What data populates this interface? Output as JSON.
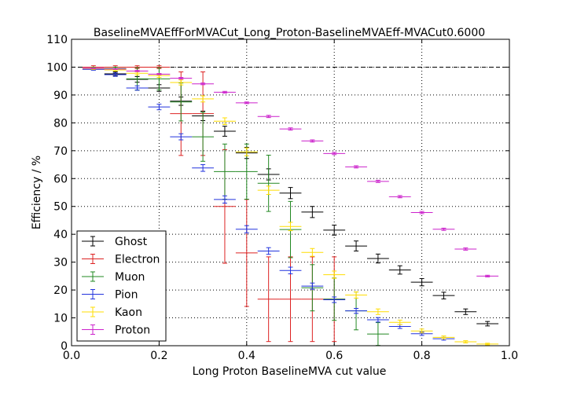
{
  "chart_data": {
    "type": "scatter",
    "title": "BaselineMVAEffForMVACut_Long_Proton-BaselineMVAEff-MVACut0.6000",
    "xlabel": "Long Proton BaselineMVA cut value",
    "ylabel": "Efficiency / %",
    "xlim": [
      0,
      1
    ],
    "ylim": [
      0,
      110
    ],
    "xticks": [
      "0.0",
      "0.2",
      "0.4",
      "0.6",
      "0.8",
      "1.0"
    ],
    "yticks": [
      "0",
      "10",
      "20",
      "30",
      "40",
      "50",
      "60",
      "70",
      "80",
      "90",
      "100",
      "110"
    ],
    "grid": true,
    "reference_line": 100,
    "legend_position": "lower-left",
    "series": [
      {
        "name": "Ghost",
        "color": "#000000",
        "points": [
          {
            "x": 0.05,
            "y": 99.3,
            "yerr": 0.3
          },
          {
            "x": 0.1,
            "y": 97.6,
            "yerr": 0.7
          },
          {
            "x": 0.15,
            "y": 95.6,
            "yerr": 1.0
          },
          {
            "x": 0.2,
            "y": 92.5,
            "yerr": 1.2
          },
          {
            "x": 0.25,
            "y": 87.8,
            "yerr": 1.5
          },
          {
            "x": 0.3,
            "y": 82.5,
            "yerr": 1.7
          },
          {
            "x": 0.35,
            "y": 77.0,
            "yerr": 1.8
          },
          {
            "x": 0.4,
            "y": 69.2,
            "yerr": 2.0
          },
          {
            "x": 0.45,
            "y": 61.5,
            "yerr": 2.0
          },
          {
            "x": 0.5,
            "y": 54.8,
            "yerr": 2.0
          },
          {
            "x": 0.55,
            "y": 48.0,
            "yerr": 2.0
          },
          {
            "x": 0.6,
            "y": 41.5,
            "yerr": 1.8
          },
          {
            "x": 0.65,
            "y": 35.8,
            "yerr": 1.8
          },
          {
            "x": 0.7,
            "y": 31.3,
            "yerr": 1.6
          },
          {
            "x": 0.75,
            "y": 27.2,
            "yerr": 1.5
          },
          {
            "x": 0.8,
            "y": 22.8,
            "yerr": 1.3
          },
          {
            "x": 0.85,
            "y": 18.0,
            "yerr": 1.2
          },
          {
            "x": 0.9,
            "y": 12.2,
            "yerr": 1.0
          },
          {
            "x": 0.95,
            "y": 7.9,
            "yerr": 0.8
          }
        ]
      },
      {
        "name": "Electron",
        "color": "#dd2222",
        "points": [
          {
            "x": 0.05,
            "y": 100,
            "yerr": 0.5
          },
          {
            "x": 0.1,
            "y": 100,
            "yerr": 0.5
          },
          {
            "x": 0.15,
            "y": 100,
            "yerr": 0.5
          },
          {
            "x": 0.2,
            "y": 100,
            "yerr": 0.5
          },
          {
            "x": 0.25,
            "y": 83.3,
            "yerr": 15.0
          },
          {
            "x": 0.3,
            "y": 83.3,
            "yerr": 15.0
          },
          {
            "x": 0.35,
            "y": 50.0,
            "yerr": 20.4
          },
          {
            "x": 0.4,
            "y": 33.3,
            "yerr": 19.2
          },
          {
            "x": 0.45,
            "y": 16.7,
            "yerr": 15.2
          },
          {
            "x": 0.5,
            "y": 16.7,
            "yerr": 15.2
          },
          {
            "x": 0.55,
            "y": 16.7,
            "yerr": 15.2
          },
          {
            "x": 0.6,
            "y": 16.7,
            "yerr": 15.2
          }
        ]
      },
      {
        "name": "Muon",
        "color": "#228822",
        "points": [
          {
            "x": 0.05,
            "y": 99.5,
            "yerr": 0.5
          },
          {
            "x": 0.1,
            "y": 99.5,
            "yerr": 0.5
          },
          {
            "x": 0.15,
            "y": 95.8,
            "yerr": 4.0
          },
          {
            "x": 0.2,
            "y": 95.8,
            "yerr": 4.0
          },
          {
            "x": 0.25,
            "y": 87.5,
            "yerr": 6.8
          },
          {
            "x": 0.3,
            "y": 75.0,
            "yerr": 8.8
          },
          {
            "x": 0.35,
            "y": 62.5,
            "yerr": 9.9
          },
          {
            "x": 0.4,
            "y": 62.5,
            "yerr": 9.9
          },
          {
            "x": 0.45,
            "y": 58.3,
            "yerr": 10.1
          },
          {
            "x": 0.5,
            "y": 41.7,
            "yerr": 10.1
          },
          {
            "x": 0.55,
            "y": 20.8,
            "yerr": 8.3
          },
          {
            "x": 0.6,
            "y": 16.7,
            "yerr": 7.6
          },
          {
            "x": 0.65,
            "y": 12.5,
            "yerr": 6.8
          },
          {
            "x": 0.7,
            "y": 4.2,
            "yerr": 4.1
          }
        ]
      },
      {
        "name": "Pion",
        "color": "#2233dd",
        "points": [
          {
            "x": 0.05,
            "y": 99.2,
            "yerr": 0.3
          },
          {
            "x": 0.1,
            "y": 97.3,
            "yerr": 0.6
          },
          {
            "x": 0.15,
            "y": 92.5,
            "yerr": 0.8
          },
          {
            "x": 0.2,
            "y": 85.7,
            "yerr": 1.0
          },
          {
            "x": 0.25,
            "y": 75.0,
            "yerr": 1.1
          },
          {
            "x": 0.3,
            "y": 63.8,
            "yerr": 1.2
          },
          {
            "x": 0.35,
            "y": 52.5,
            "yerr": 1.3
          },
          {
            "x": 0.4,
            "y": 41.8,
            "yerr": 1.3
          },
          {
            "x": 0.45,
            "y": 34.0,
            "yerr": 1.2
          },
          {
            "x": 0.5,
            "y": 27.0,
            "yerr": 1.2
          },
          {
            "x": 0.55,
            "y": 21.4,
            "yerr": 1.1
          },
          {
            "x": 0.6,
            "y": 16.5,
            "yerr": 1.0
          },
          {
            "x": 0.65,
            "y": 12.5,
            "yerr": 0.9
          },
          {
            "x": 0.7,
            "y": 9.3,
            "yerr": 0.8
          },
          {
            "x": 0.75,
            "y": 6.9,
            "yerr": 0.7
          },
          {
            "x": 0.8,
            "y": 4.3,
            "yerr": 0.6
          },
          {
            "x": 0.85,
            "y": 2.5,
            "yerr": 0.5
          }
        ]
      },
      {
        "name": "Kaon",
        "color": "#ffdd00",
        "points": [
          {
            "x": 0.05,
            "y": 99.5,
            "yerr": 0.3
          },
          {
            "x": 0.1,
            "y": 99.0,
            "yerr": 0.4
          },
          {
            "x": 0.15,
            "y": 97.8,
            "yerr": 0.6
          },
          {
            "x": 0.2,
            "y": 97.0,
            "yerr": 0.7
          },
          {
            "x": 0.25,
            "y": 94.5,
            "yerr": 0.9
          },
          {
            "x": 0.3,
            "y": 88.6,
            "yerr": 1.1
          },
          {
            "x": 0.35,
            "y": 80.6,
            "yerr": 1.2
          },
          {
            "x": 0.4,
            "y": 69.6,
            "yerr": 1.4
          },
          {
            "x": 0.45,
            "y": 55.8,
            "yerr": 1.5
          },
          {
            "x": 0.5,
            "y": 42.8,
            "yerr": 1.5
          },
          {
            "x": 0.55,
            "y": 33.5,
            "yerr": 1.4
          },
          {
            "x": 0.6,
            "y": 25.5,
            "yerr": 1.3
          },
          {
            "x": 0.65,
            "y": 18.2,
            "yerr": 1.1
          },
          {
            "x": 0.7,
            "y": 12.2,
            "yerr": 1.0
          },
          {
            "x": 0.75,
            "y": 8.4,
            "yerr": 0.8
          },
          {
            "x": 0.8,
            "y": 5.3,
            "yerr": 0.7
          },
          {
            "x": 0.85,
            "y": 3.0,
            "yerr": 0.5
          },
          {
            "x": 0.9,
            "y": 1.4,
            "yerr": 0.4
          },
          {
            "x": 0.95,
            "y": 0.6,
            "yerr": 0.3
          }
        ]
      },
      {
        "name": "Proton",
        "color": "#cc22cc",
        "points": [
          {
            "x": 0.05,
            "y": 99.6,
            "yerr": 0.1
          },
          {
            "x": 0.1,
            "y": 99.3,
            "yerr": 0.1
          },
          {
            "x": 0.15,
            "y": 98.6,
            "yerr": 0.2
          },
          {
            "x": 0.2,
            "y": 97.5,
            "yerr": 0.2
          },
          {
            "x": 0.25,
            "y": 96.0,
            "yerr": 0.3
          },
          {
            "x": 0.3,
            "y": 94.0,
            "yerr": 0.3
          },
          {
            "x": 0.35,
            "y": 91.0,
            "yerr": 0.3
          },
          {
            "x": 0.4,
            "y": 87.2,
            "yerr": 0.3
          },
          {
            "x": 0.45,
            "y": 82.3,
            "yerr": 0.4
          },
          {
            "x": 0.5,
            "y": 77.8,
            "yerr": 0.4
          },
          {
            "x": 0.55,
            "y": 73.5,
            "yerr": 0.4
          },
          {
            "x": 0.6,
            "y": 69.0,
            "yerr": 0.4
          },
          {
            "x": 0.65,
            "y": 64.2,
            "yerr": 0.4
          },
          {
            "x": 0.7,
            "y": 59.0,
            "yerr": 0.4
          },
          {
            "x": 0.75,
            "y": 53.5,
            "yerr": 0.4
          },
          {
            "x": 0.8,
            "y": 47.8,
            "yerr": 0.4
          },
          {
            "x": 0.85,
            "y": 41.8,
            "yerr": 0.4
          },
          {
            "x": 0.9,
            "y": 34.7,
            "yerr": 0.4
          },
          {
            "x": 0.95,
            "y": 25.0,
            "yerr": 0.3
          }
        ]
      }
    ]
  }
}
